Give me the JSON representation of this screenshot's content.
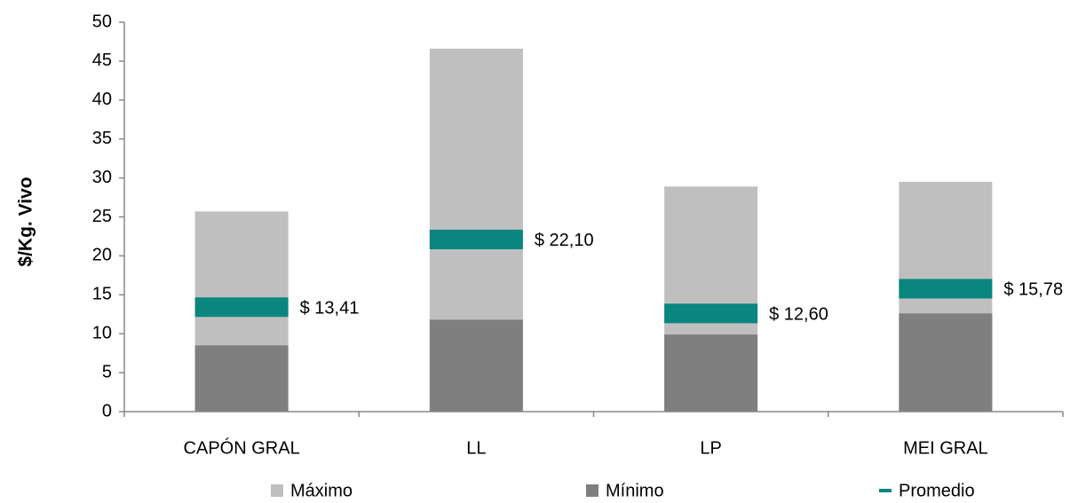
{
  "chart_data": {
    "type": "bar",
    "ylabel": "$/Kg. Vivo",
    "categories": [
      "CAPÓN GRAL",
      "LL",
      "LP",
      "MEI GRAL"
    ],
    "series": [
      {
        "name": "Máximo",
        "color": "#bfbfbf",
        "kind": "bar",
        "values": [
          25.7,
          46.6,
          28.9,
          29.5
        ]
      },
      {
        "name": "Mínimo",
        "color": "#7f7f7f",
        "kind": "bar",
        "values": [
          8.5,
          11.8,
          9.9,
          12.6
        ]
      },
      {
        "name": "Promedio",
        "color": "#0a8580",
        "kind": "marker",
        "values": [
          13.41,
          22.1,
          12.6,
          15.78
        ],
        "value_labels": [
          "$ 13,41",
          "$ 22,10",
          "$ 12,60",
          "$ 15,78"
        ]
      }
    ],
    "ylim": [
      0,
      50
    ],
    "yticks": [
      0,
      5,
      10,
      15,
      20,
      25,
      30,
      35,
      40,
      45,
      50
    ],
    "grid": false,
    "legend": "bottom"
  }
}
